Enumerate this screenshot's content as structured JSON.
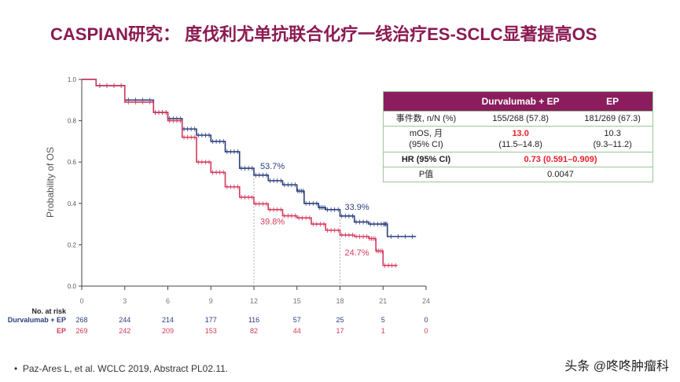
{
  "title": "CASPIAN研究： 度伐利尤单抗联合化疗一线治疗ES-SCLC显著提高OS",
  "table": {
    "headers": [
      "",
      "Durvalumab + EP",
      "EP"
    ],
    "rows": [
      {
        "label": "事件数, n/N (%)",
        "durva": "155/268 (57.8)",
        "ep": "181/269 (67.3)"
      },
      {
        "label": "mOS, 月",
        "label2": "(95% CI)",
        "durva": "13.0",
        "durva2": "(11.5–14.8)",
        "ep": "10.3",
        "ep2": "(9.3–11.2)"
      },
      {
        "label": "HR (95% CI)",
        "value": "0.73 (0.591–0.909)"
      },
      {
        "label": "P值",
        "value": "0.0047"
      }
    ],
    "header_color": "#8b1d5e"
  },
  "chart_data": {
    "type": "line",
    "ylabel": "Probability of OS",
    "xlim": [
      0,
      24
    ],
    "ylim": [
      0,
      1.0
    ],
    "xticks": [
      "0",
      "3",
      "6",
      "9",
      "12",
      "15",
      "18",
      "21",
      "24"
    ],
    "yticks": [
      "0.0",
      "0.2",
      "0.4",
      "0.6",
      "0.8",
      "1.0"
    ],
    "series": [
      {
        "name": "Durvalumab + EP",
        "color": "#2b3f7f",
        "points": [
          [
            0,
            1
          ],
          [
            1,
            0.97
          ],
          [
            3,
            0.9
          ],
          [
            5,
            0.84
          ],
          [
            6,
            0.81
          ],
          [
            7,
            0.76
          ],
          [
            8,
            0.73
          ],
          [
            9,
            0.7
          ],
          [
            10,
            0.65
          ],
          [
            11,
            0.57
          ],
          [
            12,
            0.537
          ],
          [
            13,
            0.51
          ],
          [
            14,
            0.49
          ],
          [
            15,
            0.46
          ],
          [
            15.5,
            0.4
          ],
          [
            16.5,
            0.38
          ],
          [
            17,
            0.37
          ],
          [
            18,
            0.339
          ],
          [
            19,
            0.31
          ],
          [
            20,
            0.3
          ],
          [
            21,
            0.3
          ],
          [
            21.3,
            0.24
          ],
          [
            23.3,
            0.24
          ]
        ]
      },
      {
        "name": "EP",
        "color": "#d63a5e",
        "points": [
          [
            0,
            1
          ],
          [
            1,
            0.97
          ],
          [
            3,
            0.89
          ],
          [
            5,
            0.84
          ],
          [
            6,
            0.8
          ],
          [
            7,
            0.72
          ],
          [
            8,
            0.6
          ],
          [
            9,
            0.55
          ],
          [
            10,
            0.48
          ],
          [
            11,
            0.43
          ],
          [
            12,
            0.398
          ],
          [
            13,
            0.37
          ],
          [
            14,
            0.34
          ],
          [
            15,
            0.33
          ],
          [
            16,
            0.3
          ],
          [
            17,
            0.27
          ],
          [
            18,
            0.247
          ],
          [
            19,
            0.24
          ],
          [
            20,
            0.23
          ],
          [
            20.5,
            0.17
          ],
          [
            21,
            0.1
          ],
          [
            22,
            0.1
          ]
        ]
      }
    ],
    "annotations": [
      {
        "text": "53.7%",
        "x": 12,
        "y": 0.537,
        "series": 0
      },
      {
        "text": "39.8%",
        "x": 12,
        "y": 0.398,
        "series": 1
      },
      {
        "text": "33.9%",
        "x": 18,
        "y": 0.339,
        "series": 0
      },
      {
        "text": "24.7%",
        "x": 18,
        "y": 0.247,
        "series": 1
      }
    ],
    "risk_table": {
      "title": "No. at risk",
      "rows": [
        {
          "name": "Durvalumab + EP",
          "values": [
            "268",
            "244",
            "214",
            "177",
            "116",
            "57",
            "25",
            "5",
            "0"
          ]
        },
        {
          "name": "EP",
          "values": [
            "269",
            "242",
            "209",
            "153",
            "82",
            "44",
            "17",
            "1",
            "0"
          ]
        }
      ]
    }
  },
  "reference": "Paz-Ares L, et al. WCLC 2019, Abstract PL02.11.",
  "watermark": "头条 @咚咚肿瘤科"
}
